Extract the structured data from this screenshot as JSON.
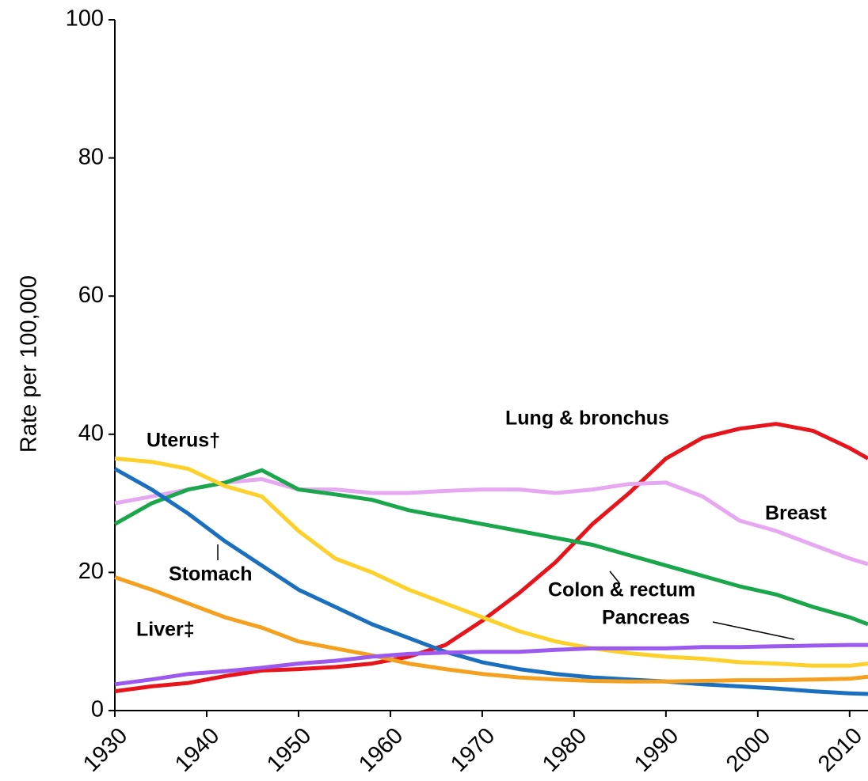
{
  "chart_data": {
    "type": "line",
    "y_label": "Rate per 100,000",
    "x": [
      1930,
      1934,
      1938,
      1942,
      1946,
      1950,
      1954,
      1958,
      1962,
      1966,
      1970,
      1974,
      1978,
      1982,
      1986,
      1990,
      1994,
      1998,
      2002,
      2006,
      2010,
      2012
    ],
    "series": [
      {
        "name": "Lung & bronchus",
        "color": "#e8141b",
        "values": [
          2.8,
          3.5,
          4,
          5,
          5.8,
          6,
          6.3,
          6.8,
          7.8,
          9.5,
          13,
          17,
          21.5,
          27,
          31.5,
          36.5,
          39.5,
          40.8,
          41.5,
          40.5,
          38,
          36.5
        ]
      },
      {
        "name": "Breast",
        "color": "#e6a8f0",
        "values": [
          30,
          31,
          32,
          33,
          33.5,
          32,
          32,
          31.5,
          31.5,
          31.8,
          32,
          32,
          31.5,
          32,
          32.8,
          33,
          31,
          27.5,
          26,
          24,
          22,
          21.2
        ]
      },
      {
        "name": "Colon & rectum",
        "color": "#1aa64a",
        "values": [
          27,
          30,
          32,
          33,
          34.8,
          32,
          31.3,
          30.5,
          29,
          28,
          27,
          26,
          25,
          24,
          22.5,
          21,
          19.5,
          18,
          16.8,
          15,
          13.5,
          12.5
        ]
      },
      {
        "name": "Uterus†",
        "color": "#fdd02a",
        "values": [
          36.5,
          36,
          35,
          32.5,
          31,
          26,
          22,
          20,
          17.5,
          15.5,
          13.5,
          11.5,
          10,
          9,
          8.3,
          7.8,
          7.5,
          7,
          6.8,
          6.5,
          6.5,
          6.8
        ]
      },
      {
        "name": "Stomach",
        "color": "#1a6fbf",
        "values": [
          35,
          32,
          28.5,
          24.5,
          21,
          17.5,
          15,
          12.5,
          10.5,
          8.5,
          7,
          6,
          5.3,
          4.8,
          4.5,
          4.2,
          3.8,
          3.5,
          3.2,
          2.8,
          2.5,
          2.4
        ]
      },
      {
        "name": "Liver‡",
        "color": "#f5a01e",
        "values": [
          19.3,
          17.5,
          15.5,
          13.5,
          12,
          10,
          9,
          8,
          6.8,
          6,
          5.3,
          4.8,
          4.5,
          4.3,
          4.2,
          4.2,
          4.3,
          4.4,
          4.4,
          4.5,
          4.6,
          4.9
        ]
      },
      {
        "name": "Pancreas",
        "color": "#9b59f0",
        "values": [
          3.8,
          4.5,
          5.3,
          5.7,
          6.2,
          6.8,
          7.2,
          7.8,
          8.2,
          8.4,
          8.5,
          8.5,
          8.8,
          9,
          9,
          9,
          9.2,
          9.2,
          9.3,
          9.4,
          9.5,
          9.5
        ]
      }
    ],
    "xlim": [
      1930,
      2012
    ],
    "xticks": [
      1930,
      1940,
      1950,
      1960,
      1970,
      1980,
      1990,
      2000,
      2010
    ],
    "ylim": [
      0,
      100
    ],
    "yticks": [
      0,
      20,
      40,
      60,
      80,
      100
    ],
    "grid": false
  }
}
